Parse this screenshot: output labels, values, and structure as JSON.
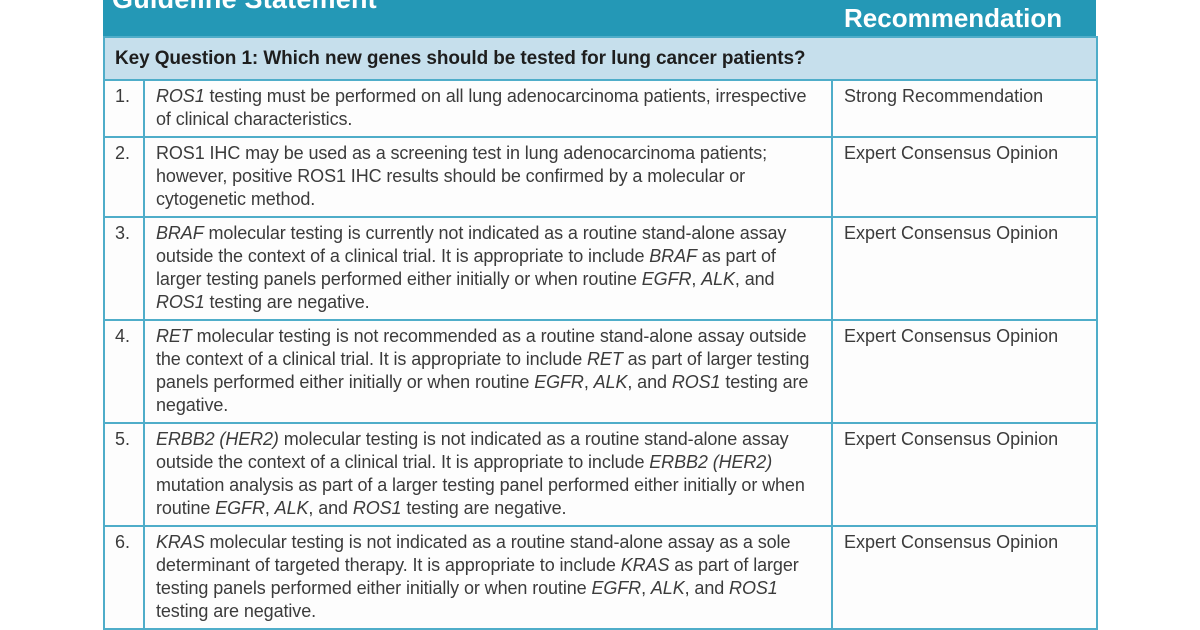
{
  "colors": {
    "header_bg": "#2498b6",
    "key_row_bg": "#c6dfec",
    "border": "#4fadc9",
    "text": "#3b3b3b",
    "key_text": "#1e1e1e",
    "header_text": "#ffffff",
    "cell_bg": "#fdfdfd"
  },
  "table": {
    "columns": [
      "Guideline Statement",
      "Recommendation"
    ],
    "key_question": "Key Question 1: Which new genes should be tested for lung cancer patients?",
    "rows": [
      {
        "num": "1.",
        "statement": [
          {
            "t": "ROS1",
            "i": true
          },
          {
            "t": " testing must be performed on all lung adenocarcinoma patients, irrespective of clinical characteristics.",
            "i": false
          }
        ],
        "recommendation": "Strong Recommendation"
      },
      {
        "num": "2.",
        "statement": [
          {
            "t": "ROS1 IHC may be used as a screening test in lung adenocarcinoma patients; however, positive ROS1 IHC results should be confirmed by a molecular or cytogenetic method.",
            "i": false
          }
        ],
        "recommendation": "Expert Consensus Opinion"
      },
      {
        "num": "3.",
        "statement": [
          {
            "t": "BRAF",
            "i": true
          },
          {
            "t": " molecular testing is currently not indicated as a routine stand-alone assay outside the context of a clinical trial. It is appropriate to include ",
            "i": false
          },
          {
            "t": "BRAF",
            "i": true
          },
          {
            "t": " as part of larger testing panels performed either initially or when routine ",
            "i": false
          },
          {
            "t": "EGFR",
            "i": true
          },
          {
            "t": ", ",
            "i": false
          },
          {
            "t": "ALK",
            "i": true
          },
          {
            "t": ", and ",
            "i": false
          },
          {
            "t": "ROS1",
            "i": true
          },
          {
            "t": " testing are negative.",
            "i": false
          }
        ],
        "recommendation": "Expert Consensus Opinion"
      },
      {
        "num": "4.",
        "statement": [
          {
            "t": "RET",
            "i": true
          },
          {
            "t": " molecular testing is not recommended as a routine stand-alone assay outside the context of a clinical trial. It is appropriate to include ",
            "i": false
          },
          {
            "t": "RET",
            "i": true
          },
          {
            "t": " as part of larger testing panels performed either initially or when routine ",
            "i": false
          },
          {
            "t": "EGFR",
            "i": true
          },
          {
            "t": ", ",
            "i": false
          },
          {
            "t": "ALK",
            "i": true
          },
          {
            "t": ", and ",
            "i": false
          },
          {
            "t": "ROS1",
            "i": true
          },
          {
            "t": " testing are negative.",
            "i": false
          }
        ],
        "recommendation": "Expert Consensus Opinion"
      },
      {
        "num": "5.",
        "statement": [
          {
            "t": "ERBB2 (HER2)",
            "i": true
          },
          {
            "t": " molecular testing is not indicated as a routine stand-alone assay outside the context of a clinical trial. It is appropriate to include ",
            "i": false
          },
          {
            "t": "ERBB2 (HER2)",
            "i": true
          },
          {
            "t": " mutation analysis as part of a larger testing panel performed either initially or when routine ",
            "i": false
          },
          {
            "t": "EGFR",
            "i": true
          },
          {
            "t": ", ",
            "i": false
          },
          {
            "t": "ALK",
            "i": true
          },
          {
            "t": ", and ",
            "i": false
          },
          {
            "t": "ROS1",
            "i": true
          },
          {
            "t": " testing are negative.",
            "i": false
          }
        ],
        "recommendation": "Expert Consensus Opinion"
      },
      {
        "num": "6.",
        "statement": [
          {
            "t": "KRAS",
            "i": true
          },
          {
            "t": " molecular testing is not indicated as a routine stand-alone assay as a sole determinant of targeted therapy. It is appropriate to include ",
            "i": false
          },
          {
            "t": "KRAS",
            "i": true
          },
          {
            "t": " as part of larger testing panels performed either initially or when routine ",
            "i": false
          },
          {
            "t": "EGFR",
            "i": true
          },
          {
            "t": ", ",
            "i": false
          },
          {
            "t": "ALK",
            "i": true
          },
          {
            "t": ", and ",
            "i": false
          },
          {
            "t": "ROS1",
            "i": true
          },
          {
            "t": " testing are negative.",
            "i": false
          }
        ],
        "recommendation": "Expert Consensus Opinion"
      }
    ]
  }
}
